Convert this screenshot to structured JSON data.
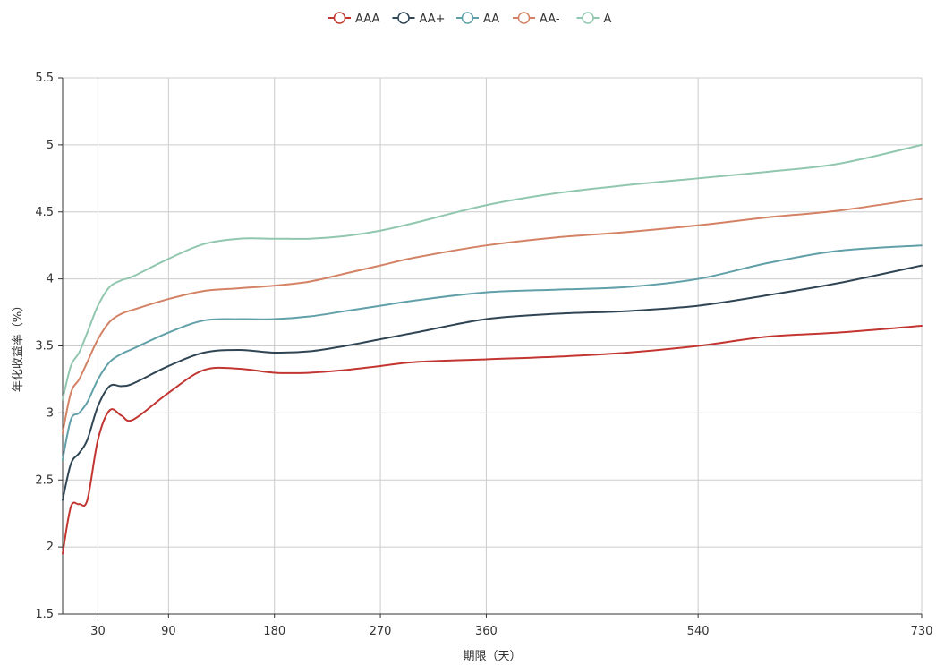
{
  "chart_data": {
    "type": "line",
    "title": "",
    "xlabel": "期限（天）",
    "ylabel": "年化收益率（%）",
    "xlim": [
      0,
      730
    ],
    "ylim": [
      1.5,
      5.5
    ],
    "x_ticks": [
      30,
      90,
      180,
      270,
      360,
      540,
      730
    ],
    "y_ticks": [
      1.5,
      2,
      2.5,
      3,
      3.5,
      4,
      4.5,
      5,
      5.5
    ],
    "y_tick_labels": [
      "1.5",
      "2",
      "2.5",
      "3",
      "3.5",
      "4",
      "4.5",
      "5",
      "5.5"
    ],
    "grid": true,
    "legend_position": "top-center",
    "series": [
      {
        "name": "AAA",
        "color": "#c23531",
        "points": [
          [
            0,
            1.95
          ],
          [
            7,
            2.3
          ],
          [
            14,
            2.32
          ],
          [
            21,
            2.35
          ],
          [
            30,
            2.8
          ],
          [
            40,
            3.02
          ],
          [
            50,
            2.98
          ],
          [
            60,
            2.95
          ],
          [
            90,
            3.15
          ],
          [
            120,
            3.32
          ],
          [
            150,
            3.33
          ],
          [
            180,
            3.3
          ],
          [
            210,
            3.3
          ],
          [
            240,
            3.32
          ],
          [
            270,
            3.35
          ],
          [
            300,
            3.38
          ],
          [
            360,
            3.4
          ],
          [
            420,
            3.42
          ],
          [
            480,
            3.45
          ],
          [
            540,
            3.5
          ],
          [
            600,
            3.57
          ],
          [
            660,
            3.6
          ],
          [
            730,
            3.65
          ]
        ]
      },
      {
        "name": "AA+",
        "color": "#2f4554",
        "points": [
          [
            0,
            2.35
          ],
          [
            7,
            2.62
          ],
          [
            14,
            2.7
          ],
          [
            21,
            2.8
          ],
          [
            30,
            3.05
          ],
          [
            40,
            3.2
          ],
          [
            50,
            3.2
          ],
          [
            60,
            3.22
          ],
          [
            90,
            3.35
          ],
          [
            120,
            3.45
          ],
          [
            150,
            3.47
          ],
          [
            180,
            3.45
          ],
          [
            210,
            3.46
          ],
          [
            240,
            3.5
          ],
          [
            270,
            3.55
          ],
          [
            300,
            3.6
          ],
          [
            360,
            3.7
          ],
          [
            420,
            3.74
          ],
          [
            480,
            3.76
          ],
          [
            540,
            3.8
          ],
          [
            600,
            3.88
          ],
          [
            660,
            3.97
          ],
          [
            730,
            4.1
          ]
        ]
      },
      {
        "name": "AA",
        "color": "#61a0a8",
        "points": [
          [
            0,
            2.65
          ],
          [
            7,
            2.95
          ],
          [
            14,
            3.0
          ],
          [
            21,
            3.08
          ],
          [
            30,
            3.25
          ],
          [
            40,
            3.38
          ],
          [
            50,
            3.44
          ],
          [
            60,
            3.48
          ],
          [
            90,
            3.6
          ],
          [
            120,
            3.69
          ],
          [
            150,
            3.7
          ],
          [
            180,
            3.7
          ],
          [
            210,
            3.72
          ],
          [
            240,
            3.76
          ],
          [
            270,
            3.8
          ],
          [
            300,
            3.84
          ],
          [
            360,
            3.9
          ],
          [
            420,
            3.92
          ],
          [
            480,
            3.94
          ],
          [
            540,
            4.0
          ],
          [
            600,
            4.12
          ],
          [
            660,
            4.21
          ],
          [
            730,
            4.25
          ]
        ]
      },
      {
        "name": "AA-",
        "color": "#d48265",
        "points": [
          [
            0,
            2.85
          ],
          [
            7,
            3.15
          ],
          [
            14,
            3.25
          ],
          [
            21,
            3.38
          ],
          [
            30,
            3.55
          ],
          [
            40,
            3.68
          ],
          [
            50,
            3.74
          ],
          [
            60,
            3.77
          ],
          [
            90,
            3.85
          ],
          [
            120,
            3.91
          ],
          [
            150,
            3.93
          ],
          [
            180,
            3.95
          ],
          [
            210,
            3.98
          ],
          [
            240,
            4.04
          ],
          [
            270,
            4.1
          ],
          [
            300,
            4.16
          ],
          [
            360,
            4.25
          ],
          [
            420,
            4.31
          ],
          [
            480,
            4.35
          ],
          [
            540,
            4.4
          ],
          [
            600,
            4.46
          ],
          [
            660,
            4.51
          ],
          [
            730,
            4.6
          ]
        ]
      },
      {
        "name": "A",
        "color": "#91c7ae",
        "points": [
          [
            0,
            3.1
          ],
          [
            7,
            3.35
          ],
          [
            14,
            3.45
          ],
          [
            21,
            3.6
          ],
          [
            30,
            3.8
          ],
          [
            40,
            3.94
          ],
          [
            50,
            3.99
          ],
          [
            60,
            4.02
          ],
          [
            90,
            4.15
          ],
          [
            120,
            4.26
          ],
          [
            150,
            4.3
          ],
          [
            180,
            4.3
          ],
          [
            210,
            4.3
          ],
          [
            240,
            4.32
          ],
          [
            270,
            4.36
          ],
          [
            300,
            4.42
          ],
          [
            360,
            4.55
          ],
          [
            420,
            4.64
          ],
          [
            480,
            4.7
          ],
          [
            540,
            4.75
          ],
          [
            600,
            4.8
          ],
          [
            660,
            4.86
          ],
          [
            730,
            5.0
          ]
        ]
      }
    ]
  }
}
